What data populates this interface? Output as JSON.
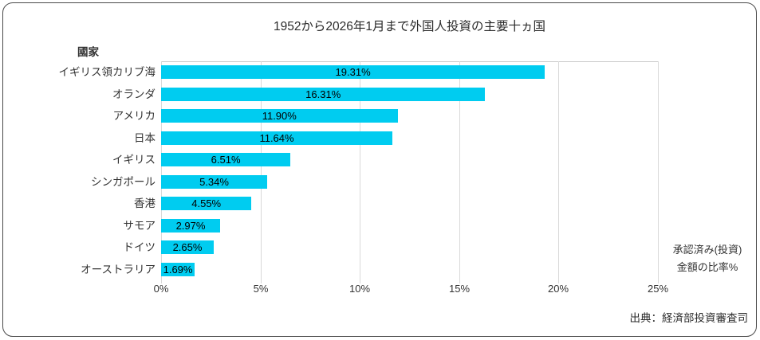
{
  "title": "1952から2026年1月まで外国人投資の主要十ヵ国",
  "category_axis_title": "國家",
  "value_axis_title": {
    "line1": "承認済み(投資)",
    "line2": "金額の比率%"
  },
  "source": "出典：経済部投資審査司",
  "colors": {
    "bar": "#00CCF0",
    "gridline": "#D9D9D9",
    "plot_border": "#C9C9C9",
    "frame_border": "#4A4A4A",
    "text": "#333333",
    "value_label_text": "#000000"
  },
  "chart_data": {
    "type": "bar",
    "orientation": "horizontal",
    "title": "1952から2026年1月まで外国人投資の主要十ヵ国",
    "ylabel": "國家",
    "xlabel": "承認済み(投資) 金額の比率%",
    "categories": [
      "イギリス領カリブ海",
      "オランダ",
      "アメリカ",
      "日本",
      "イギリス",
      "シンガポール",
      "香港",
      "サモア",
      "ドイツ",
      "オーストラリア"
    ],
    "values": [
      19.31,
      16.31,
      11.9,
      11.64,
      6.51,
      5.34,
      4.55,
      2.97,
      2.65,
      1.69
    ],
    "value_labels": [
      "19.31%",
      "16.31%",
      "11.90%",
      "11.64%",
      "6.51%",
      "5.34%",
      "4.55%",
      "2.97%",
      "2.65%",
      "1.69%"
    ],
    "xlim": [
      0,
      25
    ],
    "xtick_values": [
      0,
      5,
      10,
      15,
      20,
      25
    ],
    "xtick_labels": [
      "0%",
      "5%",
      "10%",
      "15%",
      "20%",
      "25%"
    ],
    "grid": true,
    "legend": false,
    "source": "出典：経済部投資審査司"
  }
}
